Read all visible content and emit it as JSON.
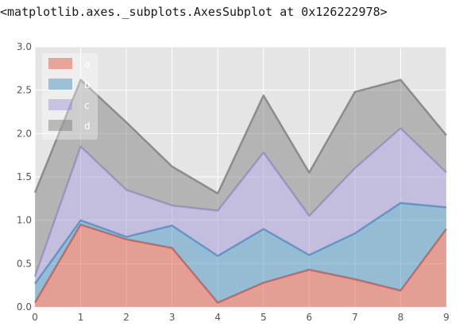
{
  "output_repr": "<matplotlib.axes._subplots.AxesSubplot at 0x126222978>",
  "chart_data": {
    "type": "area",
    "stacked": true,
    "x": [
      0,
      1,
      2,
      3,
      4,
      5,
      6,
      7,
      8,
      9
    ],
    "series": [
      {
        "name": "a",
        "color": "#E24A33",
        "values": [
          0.05,
          0.95,
          0.78,
          0.68,
          0.05,
          0.28,
          0.43,
          0.32,
          0.19,
          0.9
        ]
      },
      {
        "name": "b",
        "color": "#348ABD",
        "values": [
          0.22,
          0.05,
          0.03,
          0.26,
          0.54,
          0.62,
          0.17,
          0.53,
          1.01,
          0.25
        ]
      },
      {
        "name": "c",
        "color": "#988ED5",
        "values": [
          0.08,
          0.85,
          0.54,
          0.23,
          0.52,
          0.88,
          0.45,
          0.75,
          0.86,
          0.4
        ]
      },
      {
        "name": "d",
        "color": "#777777",
        "values": [
          0.97,
          0.77,
          0.78,
          0.45,
          0.2,
          0.66,
          0.5,
          0.88,
          0.56,
          0.43
        ]
      }
    ],
    "xlim": [
      0,
      9
    ],
    "ylim": [
      0,
      3.0
    ],
    "xticks": [
      "0",
      "1",
      "2",
      "3",
      "4",
      "5",
      "6",
      "7",
      "8",
      "9"
    ],
    "yticks": [
      "0.0",
      "0.5",
      "1.0",
      "1.5",
      "2.0",
      "2.5",
      "3.0"
    ],
    "background": "#E5E5E5",
    "grid": true,
    "legend_position": "upper-left",
    "title": "",
    "xlabel": "",
    "ylabel": ""
  }
}
